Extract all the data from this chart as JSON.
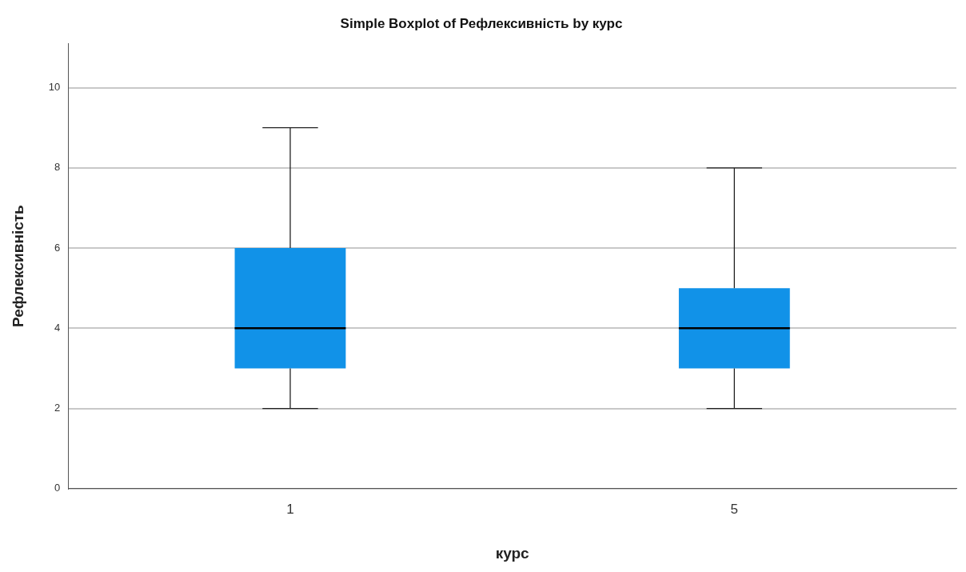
{
  "chart_data": {
    "type": "box",
    "title": "Simple Boxplot of Рефлексивність by курс",
    "xlabel": "курс",
    "ylabel": "Рефлексивність",
    "categories": [
      "1",
      "5"
    ],
    "color": "#1192e8",
    "boxes": [
      {
        "low": 2,
        "q1": 3,
        "median": 4,
        "q3": 6,
        "high": 9
      },
      {
        "low": 2,
        "q1": 3,
        "median": 4,
        "q3": 5,
        "high": 8
      }
    ],
    "ylim": [
      0,
      11.1
    ],
    "yticks": [
      0,
      2,
      4,
      6,
      8,
      10
    ],
    "grid": "y"
  }
}
